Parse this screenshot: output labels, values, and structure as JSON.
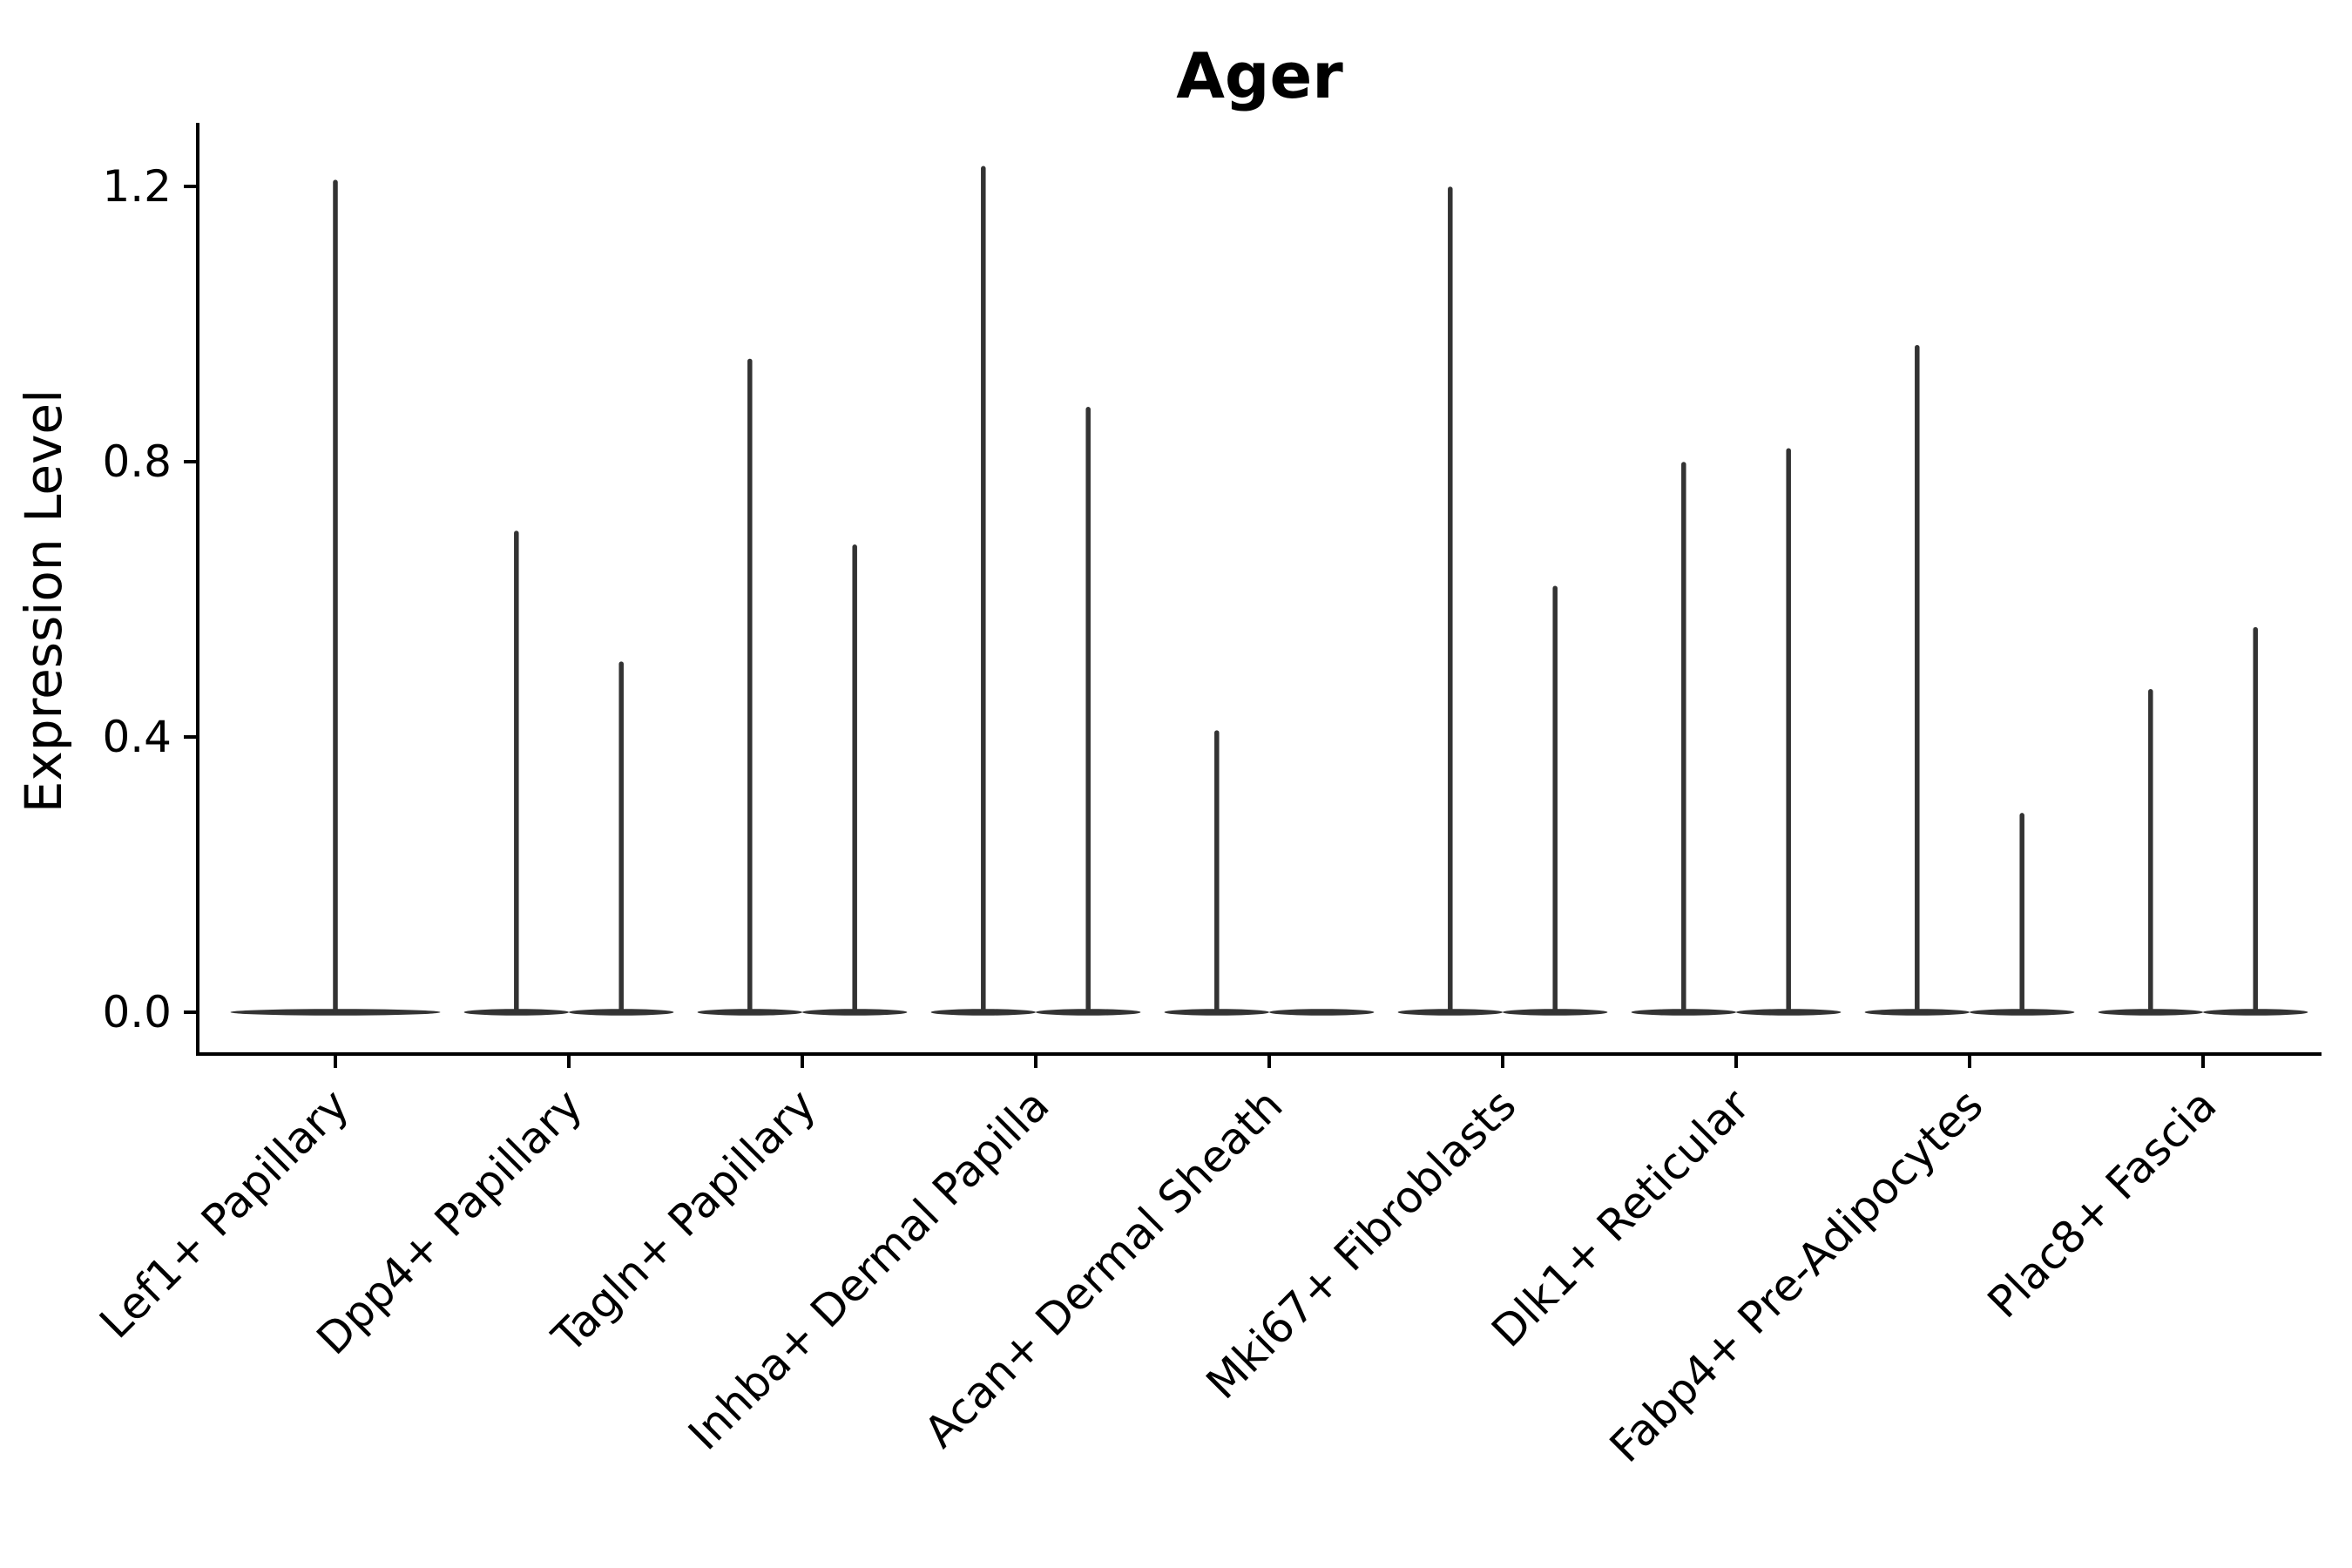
{
  "title": "Ager",
  "chart_data": {
    "type": "violin",
    "title": "Ager",
    "ylabel": "Expression Level",
    "xlabel": "",
    "yticks": [
      0.0,
      0.4,
      0.8,
      1.2
    ],
    "ytick_labels": [
      "0.0",
      "0.4",
      "0.8",
      "1.2"
    ],
    "ylim": [
      -0.06,
      1.29
    ],
    "grid": false,
    "legend_position": "none",
    "violin_color": "#333333",
    "axis_color": "#000000",
    "categories": [
      "Lef1+ Papillary",
      "Dpp4+ Papillary",
      "Tagln+ Papillary",
      "Inhba+ Dermal Papilla",
      "Acan+ Dermal Sheath",
      "Mki67+ Fibroblasts",
      "Dlk1+ Reticular",
      "Fabp4+ Pre-Adipocytes",
      "Plac8+ Fascia"
    ],
    "violins": [
      {
        "category": "Lef1+ Papillary",
        "groups": [
          {
            "side": "center",
            "width": "full",
            "max": 1.21
          }
        ]
      },
      {
        "category": "Dpp4+ Papillary",
        "groups": [
          {
            "side": "left",
            "width": "half",
            "max": 0.7
          },
          {
            "side": "right",
            "width": "half",
            "max": 0.51
          }
        ]
      },
      {
        "category": "Tagln+ Papillary",
        "groups": [
          {
            "side": "left",
            "width": "half",
            "max": 0.95
          },
          {
            "side": "right",
            "width": "half",
            "max": 0.68
          }
        ]
      },
      {
        "category": "Inhba+ Dermal Papilla",
        "groups": [
          {
            "side": "left",
            "width": "half",
            "max": 1.23
          },
          {
            "side": "right",
            "width": "half",
            "max": 0.88
          }
        ]
      },
      {
        "category": "Acan+ Dermal Sheath",
        "groups": [
          {
            "side": "left",
            "width": "half",
            "max": 0.41
          },
          {
            "side": "right",
            "width": "half",
            "max": 0.0
          }
        ]
      },
      {
        "category": "Mki67+ Fibroblasts",
        "groups": [
          {
            "side": "left",
            "width": "half",
            "max": 1.2
          },
          {
            "side": "right",
            "width": "half",
            "max": 0.62
          }
        ]
      },
      {
        "category": "Dlk1+ Reticular",
        "groups": [
          {
            "side": "left",
            "width": "half",
            "max": 0.8
          },
          {
            "side": "right",
            "width": "half",
            "max": 0.82
          }
        ]
      },
      {
        "category": "Fabp4+ Pre-Adipocytes",
        "groups": [
          {
            "side": "left",
            "width": "half",
            "max": 0.97
          },
          {
            "side": "right",
            "width": "half",
            "max": 0.29
          }
        ]
      },
      {
        "category": "Plac8+ Fascia",
        "groups": [
          {
            "side": "left",
            "width": "half",
            "max": 0.47
          },
          {
            "side": "right",
            "width": "half",
            "max": 0.56
          }
        ]
      }
    ]
  }
}
